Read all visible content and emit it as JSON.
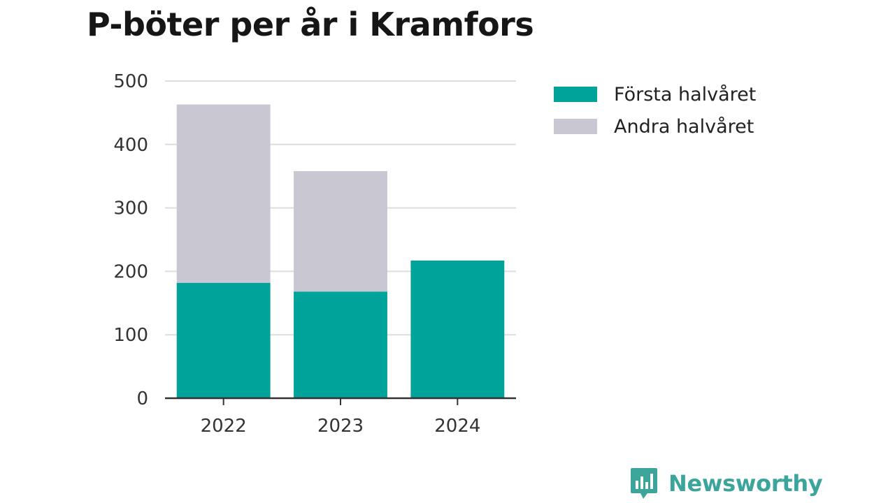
{
  "chart_data": {
    "type": "bar",
    "stacked": true,
    "title": "P-böter per år i Kramfors",
    "categories": [
      "2022",
      "2023",
      "2024"
    ],
    "series": [
      {
        "name": "Första halvåret",
        "values": [
          182,
          168,
          217
        ],
        "color": "#00A39A"
      },
      {
        "name": "Andra halvåret",
        "values": [
          281,
          190,
          0
        ],
        "color": "#C8C7D2"
      }
    ],
    "ylim": [
      0,
      500
    ],
    "yticks": [
      0,
      100,
      200,
      300,
      400,
      500
    ],
    "grid": true,
    "legend_position": "right",
    "xlabel": "",
    "ylabel": ""
  },
  "branding": {
    "name": "Newsworthy",
    "icon": "newsworthy-logo-icon",
    "color": "#3BA59B"
  }
}
